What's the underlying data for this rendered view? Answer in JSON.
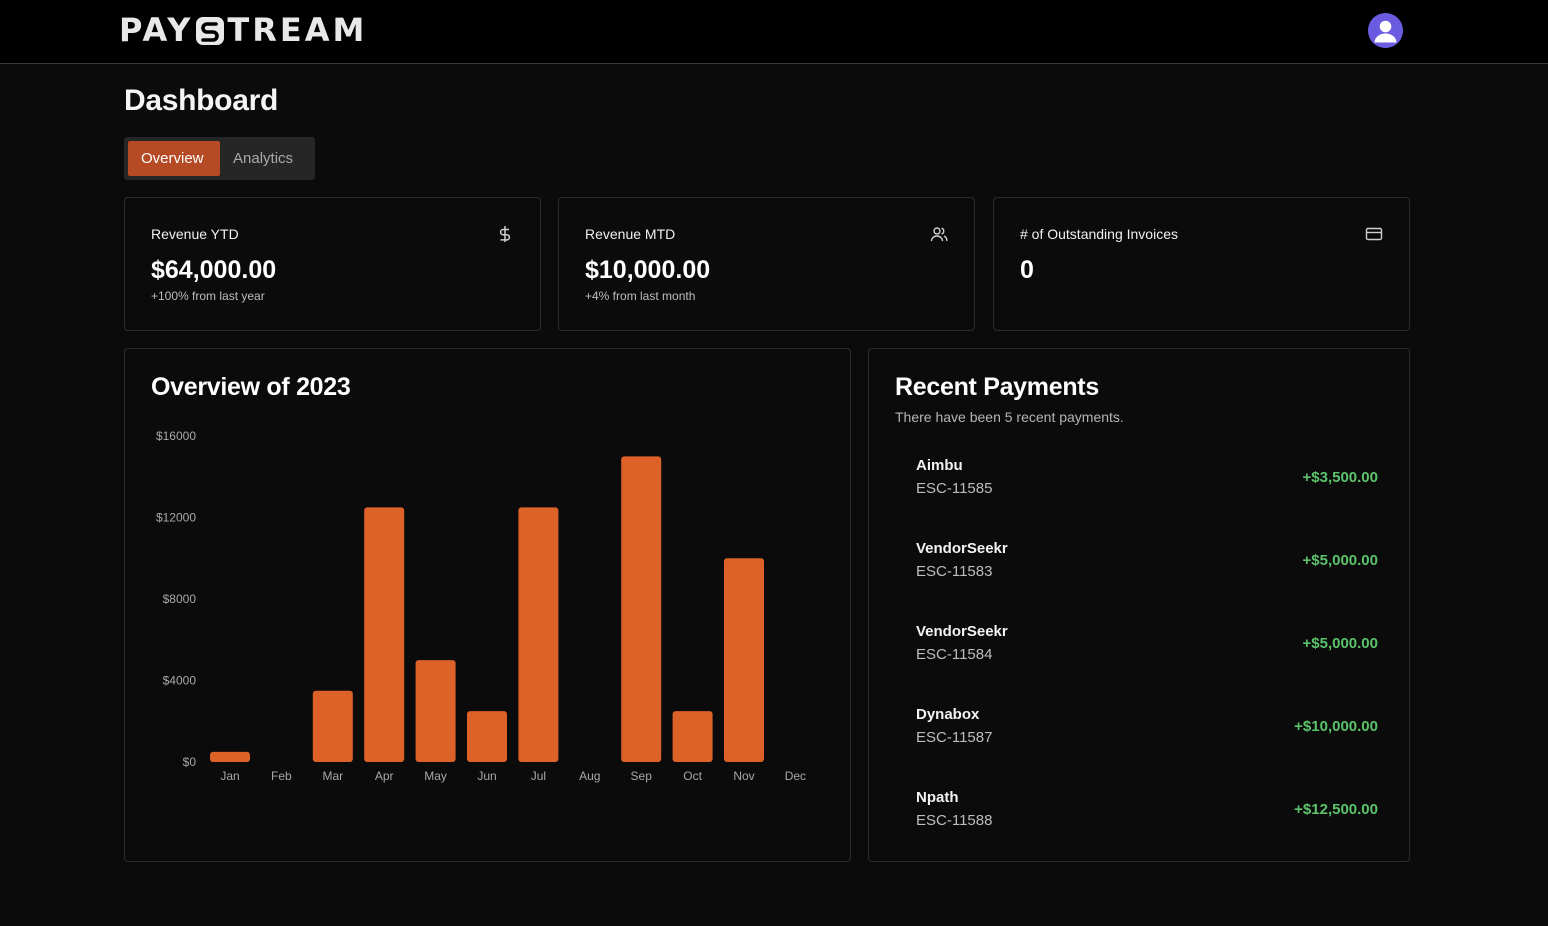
{
  "header": {
    "brand_left": "PAY",
    "brand_right": "TREAM",
    "avatar_icon": "user-avatar-icon",
    "avatar_color": "#5b5bdc"
  },
  "page": {
    "title": "Dashboard",
    "tabs": [
      {
        "label": "Overview",
        "active": true
      },
      {
        "label": "Analytics",
        "active": false
      }
    ]
  },
  "stats": [
    {
      "label": "Revenue YTD",
      "value": "$64,000.00",
      "sub": "+100% from last year",
      "icon": "dollar-icon"
    },
    {
      "label": "Revenue MTD",
      "value": "$10,000.00",
      "sub": "+4% from last month",
      "icon": "users-icon"
    },
    {
      "label": "# of Outstanding Invoices",
      "value": "0",
      "sub": "",
      "icon": "credit-card-icon"
    }
  ],
  "overview": {
    "title": "Overview of 2023"
  },
  "chart_data": {
    "type": "bar",
    "title": "Overview of 2023",
    "categories": [
      "Jan",
      "Feb",
      "Mar",
      "Apr",
      "May",
      "Jun",
      "Jul",
      "Aug",
      "Sep",
      "Oct",
      "Nov",
      "Dec"
    ],
    "values": [
      500,
      0,
      3500,
      12500,
      5000,
      2500,
      12500,
      0,
      15000,
      2500,
      10000,
      0
    ],
    "y_ticks": [
      0,
      4000,
      8000,
      12000,
      16000
    ],
    "y_tick_labels": [
      "$0",
      "$4000",
      "$8000",
      "$12000",
      "$16000"
    ],
    "ylim": [
      0,
      16000
    ],
    "bar_color": "#dc6228",
    "grid": false,
    "legend": "none"
  },
  "recent": {
    "title": "Recent Payments",
    "subtitle": "There have been 5 recent payments.",
    "payments": [
      {
        "name": "Aimbu",
        "id": "ESC-11585",
        "amount": "+$3,500.00"
      },
      {
        "name": "VendorSeekr",
        "id": "ESC-11583",
        "amount": "+$5,000.00"
      },
      {
        "name": "VendorSeekr",
        "id": "ESC-11584",
        "amount": "+$5,000.00"
      },
      {
        "name": "Dynabox",
        "id": "ESC-11587",
        "amount": "+$10,000.00"
      },
      {
        "name": "Npath",
        "id": "ESC-11588",
        "amount": "+$12,500.00"
      }
    ],
    "amount_color": "#5cc36b"
  }
}
